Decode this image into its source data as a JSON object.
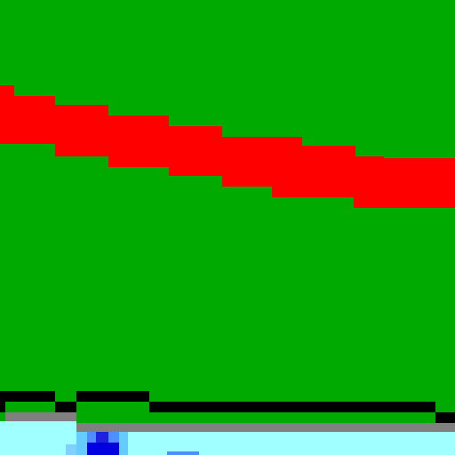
{
  "scene": {
    "type": "pixel-art game view",
    "colors": {
      "grass": "#00aa00",
      "road": "#ff0000",
      "edge_black": "#000000",
      "edge_gray": "#808080",
      "water": "#a0ffff",
      "water_object_dark": "#0000e0",
      "water_object_light": "#4f8fff"
    }
  }
}
